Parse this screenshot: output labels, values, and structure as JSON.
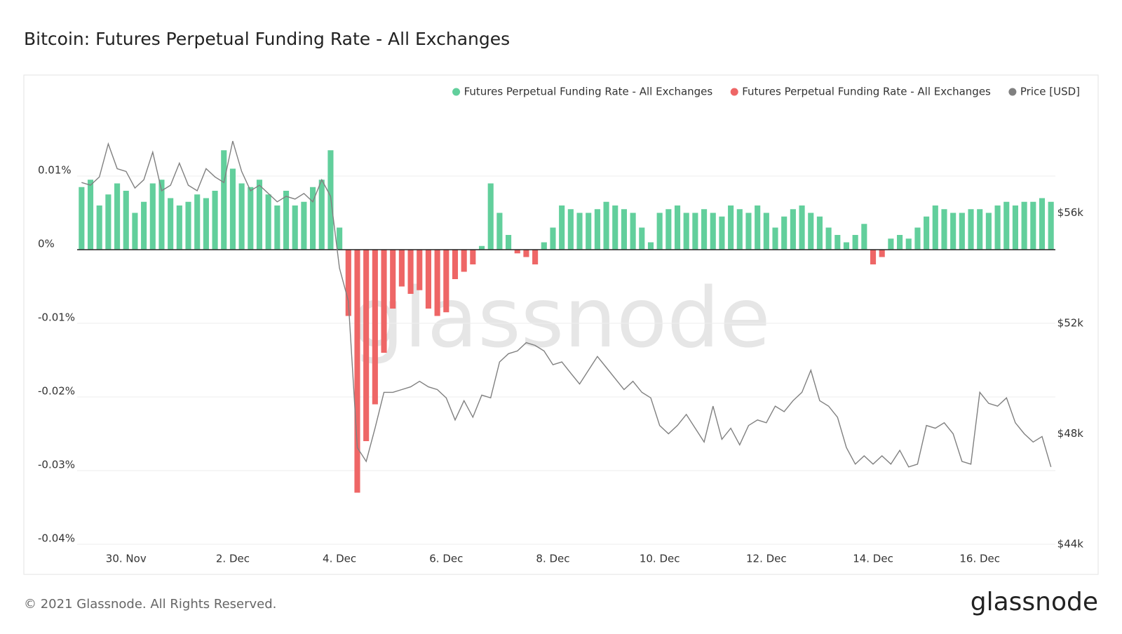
{
  "chart_data": {
    "type": "bar",
    "title": "Bitcoin: Futures Perpetual Funding Rate - All Exchanges",
    "watermark": "glassnode",
    "footer": "© 2021 Glassnode. All Rights Reserved.",
    "logo": "glassnode",
    "categories": [
      null,
      null,
      null,
      null,
      null,
      "30. Nov",
      null,
      null,
      null,
      null,
      null,
      null,
      null,
      null,
      null,
      null,
      null,
      "2. Dec",
      null,
      null,
      null,
      null,
      null,
      null,
      null,
      null,
      null,
      null,
      null,
      "4. Dec",
      null,
      null,
      null,
      null,
      null,
      null,
      null,
      null,
      null,
      null,
      null,
      "6. Dec",
      null,
      null,
      null,
      null,
      null,
      null,
      null,
      null,
      null,
      null,
      null,
      "8. Dec",
      null,
      null,
      null,
      null,
      null,
      null,
      null,
      null,
      null,
      null,
      null,
      "10. Dec",
      null,
      null,
      null,
      null,
      null,
      null,
      null,
      null,
      null,
      null,
      null,
      "12. Dec",
      null,
      null,
      null,
      null,
      null,
      null,
      null,
      null,
      null,
      null,
      null,
      "14. Dec",
      null,
      null,
      null,
      null,
      null,
      null,
      null,
      null,
      null,
      null,
      null,
      "16. Dec",
      null,
      null,
      null,
      null,
      null,
      null,
      null,
      null
    ],
    "series": [
      {
        "name": "Futures Perpetual Funding Rate - All Exchanges",
        "color": "#62cf9c",
        "values": [
          0.0085,
          0.0095,
          0.006,
          0.0075,
          0.009,
          0.008,
          0.005,
          0.0065,
          0.009,
          0.0095,
          0.007,
          0.006,
          0.0065,
          0.0075,
          0.007,
          0.008,
          0.0135,
          0.011,
          0.009,
          0.0085,
          0.0095,
          0.0075,
          0.006,
          0.008,
          0.006,
          0.0065,
          0.0085,
          0.0095,
          0.0135,
          0.003,
          null,
          null,
          null,
          null,
          null,
          null,
          null,
          null,
          null,
          null,
          null,
          null,
          null,
          null,
          null,
          0.0005,
          0.009,
          0.005,
          0.002,
          null,
          null,
          null,
          0.001,
          0.003,
          0.006,
          0.0055,
          0.005,
          0.005,
          0.0055,
          0.0065,
          0.006,
          0.0055,
          0.005,
          0.003,
          0.001,
          0.005,
          0.0055,
          0.006,
          0.005,
          0.005,
          0.0055,
          0.005,
          0.0045,
          0.006,
          0.0055,
          0.005,
          0.006,
          0.005,
          0.003,
          0.0045,
          0.0055,
          0.006,
          0.005,
          0.0045,
          0.003,
          0.002,
          0.001,
          0.002,
          0.0035,
          null,
          null,
          0.0015,
          0.002,
          0.0015,
          0.003,
          0.0045,
          0.006,
          0.0055,
          0.005,
          0.005,
          0.0055,
          0.0055,
          0.005,
          0.006,
          0.0065,
          0.006,
          0.0065,
          0.0065,
          0.007,
          0.0065
        ]
      },
      {
        "name": "Futures Perpetual Funding Rate - All Exchanges",
        "color": "#ee6666",
        "values": [
          null,
          null,
          null,
          null,
          null,
          null,
          null,
          null,
          null,
          null,
          null,
          null,
          null,
          null,
          null,
          null,
          null,
          null,
          null,
          null,
          null,
          null,
          null,
          null,
          null,
          null,
          null,
          null,
          null,
          null,
          -0.009,
          -0.033,
          -0.026,
          -0.021,
          -0.014,
          -0.008,
          -0.005,
          -0.006,
          -0.0055,
          -0.008,
          -0.009,
          -0.0085,
          -0.004,
          -0.003,
          -0.002,
          null,
          null,
          null,
          null,
          -0.0005,
          -0.001,
          -0.002,
          null,
          null,
          null,
          null,
          null,
          null,
          null,
          null,
          null,
          null,
          null,
          null,
          null,
          null,
          null,
          null,
          null,
          null,
          null,
          null,
          null,
          null,
          null,
          null,
          null,
          null,
          null,
          null,
          null,
          null,
          null,
          null,
          null,
          null,
          null,
          null,
          null,
          -0.002,
          -0.001,
          null,
          null,
          null,
          null,
          null,
          null,
          null,
          null,
          null,
          null,
          null,
          null,
          null,
          null,
          null,
          null,
          null,
          null,
          null
        ]
      },
      {
        "name": "Price [USD]",
        "color": "#808080",
        "axis": "y2",
        "values": [
          57100,
          57000,
          57300,
          58500,
          57600,
          57500,
          56900,
          57200,
          58200,
          56800,
          57000,
          57800,
          57000,
          56800,
          57600,
          57300,
          57100,
          58600,
          57500,
          56800,
          57000,
          56700,
          56400,
          56600,
          56500,
          56700,
          56400,
          57200,
          56600,
          54000,
          52800,
          47500,
          47000,
          48200,
          49500,
          49500,
          49600,
          49700,
          49900,
          49700,
          49600,
          49300,
          48500,
          49200,
          48600,
          49400,
          49300,
          50600,
          50900,
          51000,
          51300,
          51200,
          51000,
          50500,
          50600,
          50200,
          49800,
          50300,
          50800,
          50400,
          50000,
          49600,
          49900,
          49500,
          49300,
          48300,
          48000,
          48300,
          48700,
          48200,
          47700,
          49000,
          47800,
          48200,
          47600,
          48300,
          48500,
          48400,
          49000,
          48800,
          49200,
          49500,
          50300,
          49200,
          49000,
          48600,
          47500,
          46900,
          47200,
          46900,
          47200,
          46900,
          47400,
          46800,
          46900,
          48300,
          48200,
          48400,
          48000,
          47000,
          46900,
          49500,
          49100,
          49000,
          49300,
          48400,
          48000,
          47700,
          47900,
          46800
        ]
      }
    ],
    "ylim": [
      -0.04,
      0.02
    ],
    "yticks": [
      {
        "value": 0.01,
        "label": "0.01%"
      },
      {
        "value": 0,
        "label": "0%"
      },
      {
        "value": -0.01,
        "label": "-0.01%"
      },
      {
        "value": -0.02,
        "label": "-0.02%"
      },
      {
        "value": -0.03,
        "label": "-0.03%"
      },
      {
        "value": -0.04,
        "label": "-0.04%"
      }
    ],
    "y2lim": [
      44000,
      60000
    ],
    "y2ticks": [
      {
        "value": 56000,
        "label": "$56k"
      },
      {
        "value": 52000,
        "label": "$52k"
      },
      {
        "value": 48000,
        "label": "$48k"
      },
      {
        "value": 44000,
        "label": "$44k"
      }
    ],
    "grid": true,
    "legend": "top-right"
  }
}
